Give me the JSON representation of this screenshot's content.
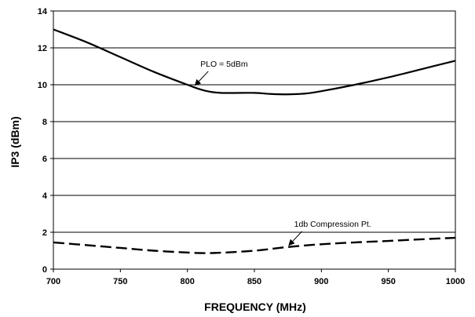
{
  "chart_data": {
    "type": "line",
    "xlabel": "FREQUENCY (MHz)",
    "ylabel": "IP3 (dBm)",
    "xlim": [
      700,
      1000
    ],
    "ylim": [
      0,
      14
    ],
    "xticks": [
      700,
      750,
      800,
      850,
      900,
      950,
      1000
    ],
    "yticks": [
      0,
      2,
      4,
      6,
      8,
      10,
      12,
      14
    ],
    "grid": "horizontal",
    "series": [
      {
        "name": "PLO = 5dBm",
        "style": "solid",
        "color": "#000000",
        "x": [
          700,
          725,
          750,
          775,
          800,
          812,
          825,
          850,
          862,
          875,
          888,
          900,
          925,
          950,
          975,
          1000
        ],
        "y": [
          13.0,
          12.3,
          11.5,
          10.7,
          10.0,
          9.7,
          9.56,
          9.56,
          9.5,
          9.48,
          9.52,
          9.65,
          10.0,
          10.4,
          10.85,
          11.3
        ]
      },
      {
        "name": "1db Compression Pt.",
        "style": "dashed",
        "color": "#000000",
        "x": [
          700,
          725,
          750,
          775,
          800,
          812,
          825,
          850,
          875,
          900,
          925,
          950,
          975,
          1000
        ],
        "y": [
          1.45,
          1.3,
          1.15,
          1.0,
          0.9,
          0.87,
          0.89,
          1.0,
          1.2,
          1.35,
          1.45,
          1.53,
          1.62,
          1.7
        ]
      }
    ],
    "annotations": [
      {
        "text": "PLO = 5dBm",
        "series": 0,
        "at_x": 805
      },
      {
        "text": "1db Compression Pt.",
        "series": 1,
        "at_x": 875
      }
    ]
  }
}
